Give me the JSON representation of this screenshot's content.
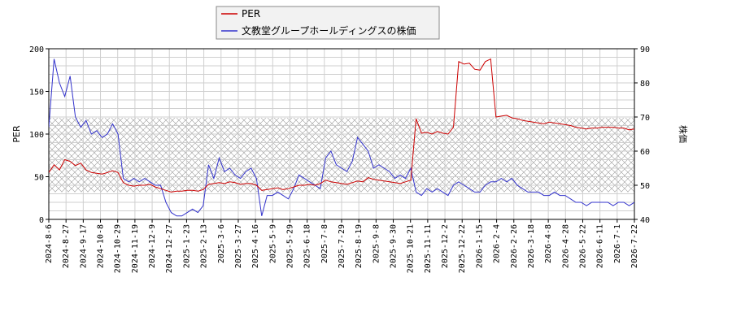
{
  "chart_data": {
    "type": "line",
    "x_ticks": [
      "2024-8-6",
      "2024-8-27",
      "2024-9-17",
      "2024-10-8",
      "2024-10-29",
      "2024-11-19",
      "2024-12-9",
      "2024-12-27",
      "2025-1-23",
      "2025-2-13",
      "2025-3-6",
      "2025-3-27",
      "2025-4-16",
      "2025-5-9",
      "2025-5-29",
      "2025-6-18",
      "2025-7-8",
      "2025-7-29",
      "2025-8-19",
      "2025-9-8",
      "2025-9-30",
      "2025-10-21",
      "2025-11-11",
      "2025-12-2",
      "2025-12-22",
      "2026-1-15",
      "2026-2-4",
      "2026-2-26",
      "2026-3-18",
      "2026-4-8",
      "2026-4-28",
      "2026-5-22",
      "2026-6-11",
      "2026-7-1",
      "2026-7-22"
    ],
    "ylabel_left": "PER",
    "ylabel_right": "株価",
    "ylim_left": [
      0,
      200
    ],
    "ylim_right": [
      40,
      90
    ],
    "yticks_left": [
      "0",
      "50",
      "100",
      "150",
      "200"
    ],
    "yticks_right": [
      "40",
      "50",
      "60",
      "70",
      "80",
      "90"
    ],
    "hatch_band_left": [
      32,
      119
    ],
    "grid": true,
    "legend_position": "top-center",
    "series": [
      {
        "name": "PER",
        "axis": "left",
        "color": "#cc0000",
        "points": [
          [
            0,
            55
          ],
          [
            1,
            64
          ],
          [
            2,
            58
          ],
          [
            3,
            70
          ],
          [
            4,
            68
          ],
          [
            5,
            63
          ],
          [
            6,
            66
          ],
          [
            7,
            58
          ],
          [
            8,
            55
          ],
          [
            9,
            54
          ],
          [
            10,
            53
          ],
          [
            11,
            55
          ],
          [
            12,
            57
          ],
          [
            13,
            55
          ],
          [
            14,
            43
          ],
          [
            15,
            40
          ],
          [
            16,
            39
          ],
          [
            17,
            40
          ],
          [
            18,
            40
          ],
          [
            19,
            41
          ],
          [
            20,
            38
          ],
          [
            21,
            36
          ],
          [
            22,
            34
          ],
          [
            23,
            32
          ],
          [
            24,
            33
          ],
          [
            25,
            33
          ],
          [
            26,
            34
          ],
          [
            27,
            34
          ],
          [
            28,
            33
          ],
          [
            29,
            35
          ],
          [
            30,
            41
          ],
          [
            31,
            42
          ],
          [
            32,
            43
          ],
          [
            33,
            42
          ],
          [
            34,
            44
          ],
          [
            35,
            43
          ],
          [
            36,
            41
          ],
          [
            37,
            42
          ],
          [
            38,
            42
          ],
          [
            39,
            40
          ],
          [
            40,
            34
          ],
          [
            41,
            35
          ],
          [
            42,
            36
          ],
          [
            43,
            37
          ],
          [
            44,
            35
          ],
          [
            45,
            36
          ],
          [
            46,
            38
          ],
          [
            47,
            40
          ],
          [
            48,
            40
          ],
          [
            49,
            41
          ],
          [
            50,
            40
          ],
          [
            51,
            42
          ],
          [
            52,
            46
          ],
          [
            53,
            44
          ],
          [
            54,
            43
          ],
          [
            55,
            42
          ],
          [
            56,
            41
          ],
          [
            57,
            43
          ],
          [
            58,
            45
          ],
          [
            59,
            44
          ],
          [
            60,
            49
          ],
          [
            61,
            47
          ],
          [
            62,
            46
          ],
          [
            63,
            45
          ],
          [
            64,
            44
          ],
          [
            65,
            43
          ],
          [
            66,
            42
          ],
          [
            67,
            44
          ],
          [
            68,
            46
          ],
          [
            69,
            118
          ],
          [
            70,
            101
          ],
          [
            71,
            102
          ],
          [
            72,
            100
          ],
          [
            73,
            103
          ],
          [
            74,
            101
          ],
          [
            75,
            100
          ],
          [
            76,
            108
          ],
          [
            77,
            185
          ],
          [
            78,
            182
          ],
          [
            79,
            183
          ],
          [
            80,
            176
          ],
          [
            81,
            175
          ],
          [
            82,
            185
          ],
          [
            83,
            188
          ],
          [
            84,
            120
          ],
          [
            85,
            121
          ],
          [
            86,
            122
          ],
          [
            87,
            119
          ],
          [
            88,
            118
          ],
          [
            89,
            116
          ],
          [
            90,
            115
          ],
          [
            91,
            114
          ],
          [
            92,
            113
          ],
          [
            93,
            112
          ],
          [
            94,
            114
          ],
          [
            95,
            113
          ],
          [
            96,
            112
          ],
          [
            97,
            111
          ],
          [
            98,
            110
          ],
          [
            99,
            108
          ],
          [
            100,
            107
          ],
          [
            101,
            106
          ],
          [
            102,
            107
          ],
          [
            103,
            107
          ],
          [
            104,
            108
          ],
          [
            105,
            108
          ],
          [
            106,
            108
          ],
          [
            107,
            107
          ],
          [
            108,
            107
          ],
          [
            109,
            105
          ],
          [
            110,
            106
          ]
        ]
      },
      {
        "name": "文教堂グループホールディングスの株価",
        "axis": "right",
        "color": "#3333cc",
        "points": [
          [
            0,
            67
          ],
          [
            1,
            87
          ],
          [
            2,
            80
          ],
          [
            3,
            76
          ],
          [
            4,
            82
          ],
          [
            5,
            70
          ],
          [
            6,
            67
          ],
          [
            7,
            69
          ],
          [
            8,
            65
          ],
          [
            9,
            66
          ],
          [
            10,
            64
          ],
          [
            11,
            65
          ],
          [
            12,
            68
          ],
          [
            13,
            65
          ],
          [
            14,
            52
          ],
          [
            15,
            51
          ],
          [
            16,
            52
          ],
          [
            17,
            51
          ],
          [
            18,
            52
          ],
          [
            19,
            51
          ],
          [
            20,
            50
          ],
          [
            21,
            50
          ],
          [
            22,
            45
          ],
          [
            23,
            42
          ],
          [
            24,
            41
          ],
          [
            25,
            41
          ],
          [
            26,
            42
          ],
          [
            27,
            43
          ],
          [
            28,
            42
          ],
          [
            29,
            44
          ],
          [
            30,
            56
          ],
          [
            31,
            52
          ],
          [
            32,
            58
          ],
          [
            33,
            54
          ],
          [
            34,
            55
          ],
          [
            35,
            53
          ],
          [
            36,
            52
          ],
          [
            37,
            54
          ],
          [
            38,
            55
          ],
          [
            39,
            52
          ],
          [
            40,
            41
          ],
          [
            41,
            47
          ],
          [
            42,
            47
          ],
          [
            43,
            48
          ],
          [
            44,
            47
          ],
          [
            45,
            46
          ],
          [
            46,
            49
          ],
          [
            47,
            53
          ],
          [
            48,
            52
          ],
          [
            49,
            51
          ],
          [
            50,
            50
          ],
          [
            51,
            49
          ],
          [
            52,
            58
          ],
          [
            53,
            60
          ],
          [
            54,
            56
          ],
          [
            55,
            55
          ],
          [
            56,
            54
          ],
          [
            57,
            57
          ],
          [
            58,
            64
          ],
          [
            59,
            62
          ],
          [
            60,
            60
          ],
          [
            61,
            55
          ],
          [
            62,
            56
          ],
          [
            63,
            55
          ],
          [
            64,
            54
          ],
          [
            65,
            52
          ],
          [
            66,
            53
          ],
          [
            67,
            52
          ],
          [
            68,
            55
          ],
          [
            69,
            48
          ],
          [
            70,
            47
          ],
          [
            71,
            49
          ],
          [
            72,
            48
          ],
          [
            73,
            49
          ],
          [
            74,
            48
          ],
          [
            75,
            47
          ],
          [
            76,
            50
          ],
          [
            77,
            51
          ],
          [
            78,
            50
          ],
          [
            79,
            49
          ],
          [
            80,
            48
          ],
          [
            81,
            48
          ],
          [
            82,
            50
          ],
          [
            83,
            51
          ],
          [
            84,
            51
          ],
          [
            85,
            52
          ],
          [
            86,
            51
          ],
          [
            87,
            52
          ],
          [
            88,
            50
          ],
          [
            89,
            49
          ],
          [
            90,
            48
          ],
          [
            91,
            48
          ],
          [
            92,
            48
          ],
          [
            93,
            47
          ],
          [
            94,
            47
          ],
          [
            95,
            48
          ],
          [
            96,
            47
          ],
          [
            97,
            47
          ],
          [
            98,
            46
          ],
          [
            99,
            45
          ],
          [
            100,
            45
          ],
          [
            101,
            44
          ],
          [
            102,
            45
          ],
          [
            103,
            45
          ],
          [
            104,
            45
          ],
          [
            105,
            45
          ],
          [
            106,
            44
          ],
          [
            107,
            45
          ],
          [
            108,
            45
          ],
          [
            109,
            44
          ],
          [
            110,
            45
          ]
        ]
      }
    ]
  }
}
